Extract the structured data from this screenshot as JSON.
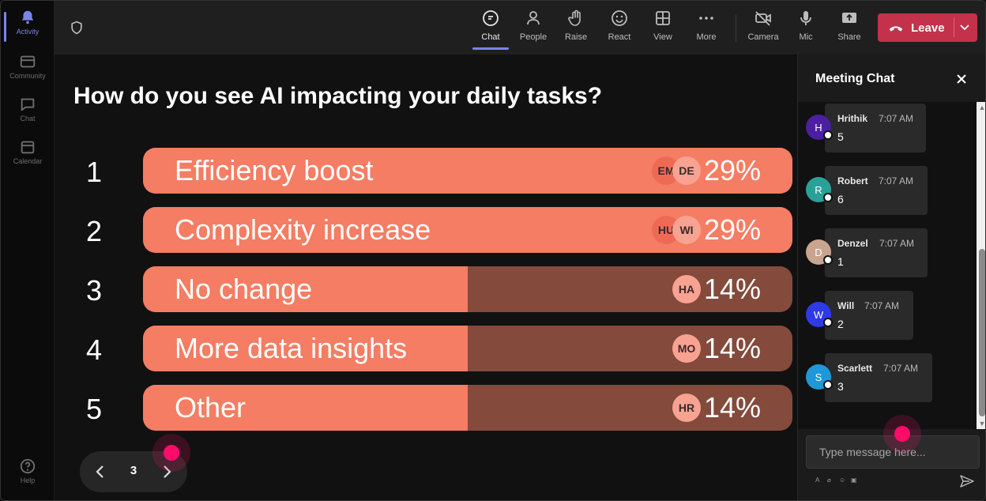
{
  "rail": {
    "items": [
      {
        "label": "Activity",
        "icon": "bell-icon",
        "active": true
      },
      {
        "label": "Community",
        "icon": "community-icon"
      },
      {
        "label": "Chat",
        "icon": "chat-icon"
      },
      {
        "label": "Calendar",
        "icon": "calendar-icon"
      }
    ],
    "help_label": "Help"
  },
  "toolbar": {
    "chat": "Chat",
    "people": "People",
    "raise": "Raise",
    "react": "React",
    "view": "View",
    "more": "More",
    "camera": "Camera",
    "mic": "Mic",
    "share": "Share",
    "leave": "Leave"
  },
  "poll": {
    "question": "How do you see AI impacting your daily tasks?",
    "options": [
      {
        "num": "1",
        "label": "Efficiency boost",
        "percent": "29%",
        "fraction": 1.0,
        "voters": [
          "EM",
          "DE"
        ]
      },
      {
        "num": "2",
        "label": "Complexity increase",
        "percent": "29%",
        "fraction": 1.0,
        "voters": [
          "HU",
          "WI"
        ]
      },
      {
        "num": "3",
        "label": "No change",
        "percent": "14%",
        "fraction": 0.5,
        "voters": [
          "HA"
        ]
      },
      {
        "num": "4",
        "label": "More data insights",
        "percent": "14%",
        "fraction": 0.5,
        "voters": [
          "MO"
        ]
      },
      {
        "num": "5",
        "label": "Other",
        "percent": "14%",
        "fraction": 0.5,
        "voters": [
          "HR"
        ]
      }
    ],
    "page": "3"
  },
  "chat": {
    "title": "Meeting Chat",
    "messages": [
      {
        "initial": "H",
        "sender": "Hrithik",
        "time": "7:07 AM",
        "text": "5",
        "color": "#4b1fa0"
      },
      {
        "initial": "R",
        "sender": "Robert",
        "time": "7:07 AM",
        "text": "6",
        "color": "#2aa198"
      },
      {
        "initial": "D",
        "sender": "Denzel",
        "time": "7:07 AM",
        "text": "1",
        "color": "#c9a48e"
      },
      {
        "initial": "W",
        "sender": "Will",
        "time": "7:07 AM",
        "text": "2",
        "color": "#2e3ae6"
      },
      {
        "initial": "S",
        "sender": "Scarlett",
        "time": "7:07 AM",
        "text": "3",
        "color": "#1e98d8"
      }
    ],
    "placeholder": "Type message here..."
  },
  "colors": {
    "bar_fill": "#f47d63",
    "bar_track": "#844a3b",
    "leave": "#c4314b",
    "accent": "#7b83eb"
  }
}
